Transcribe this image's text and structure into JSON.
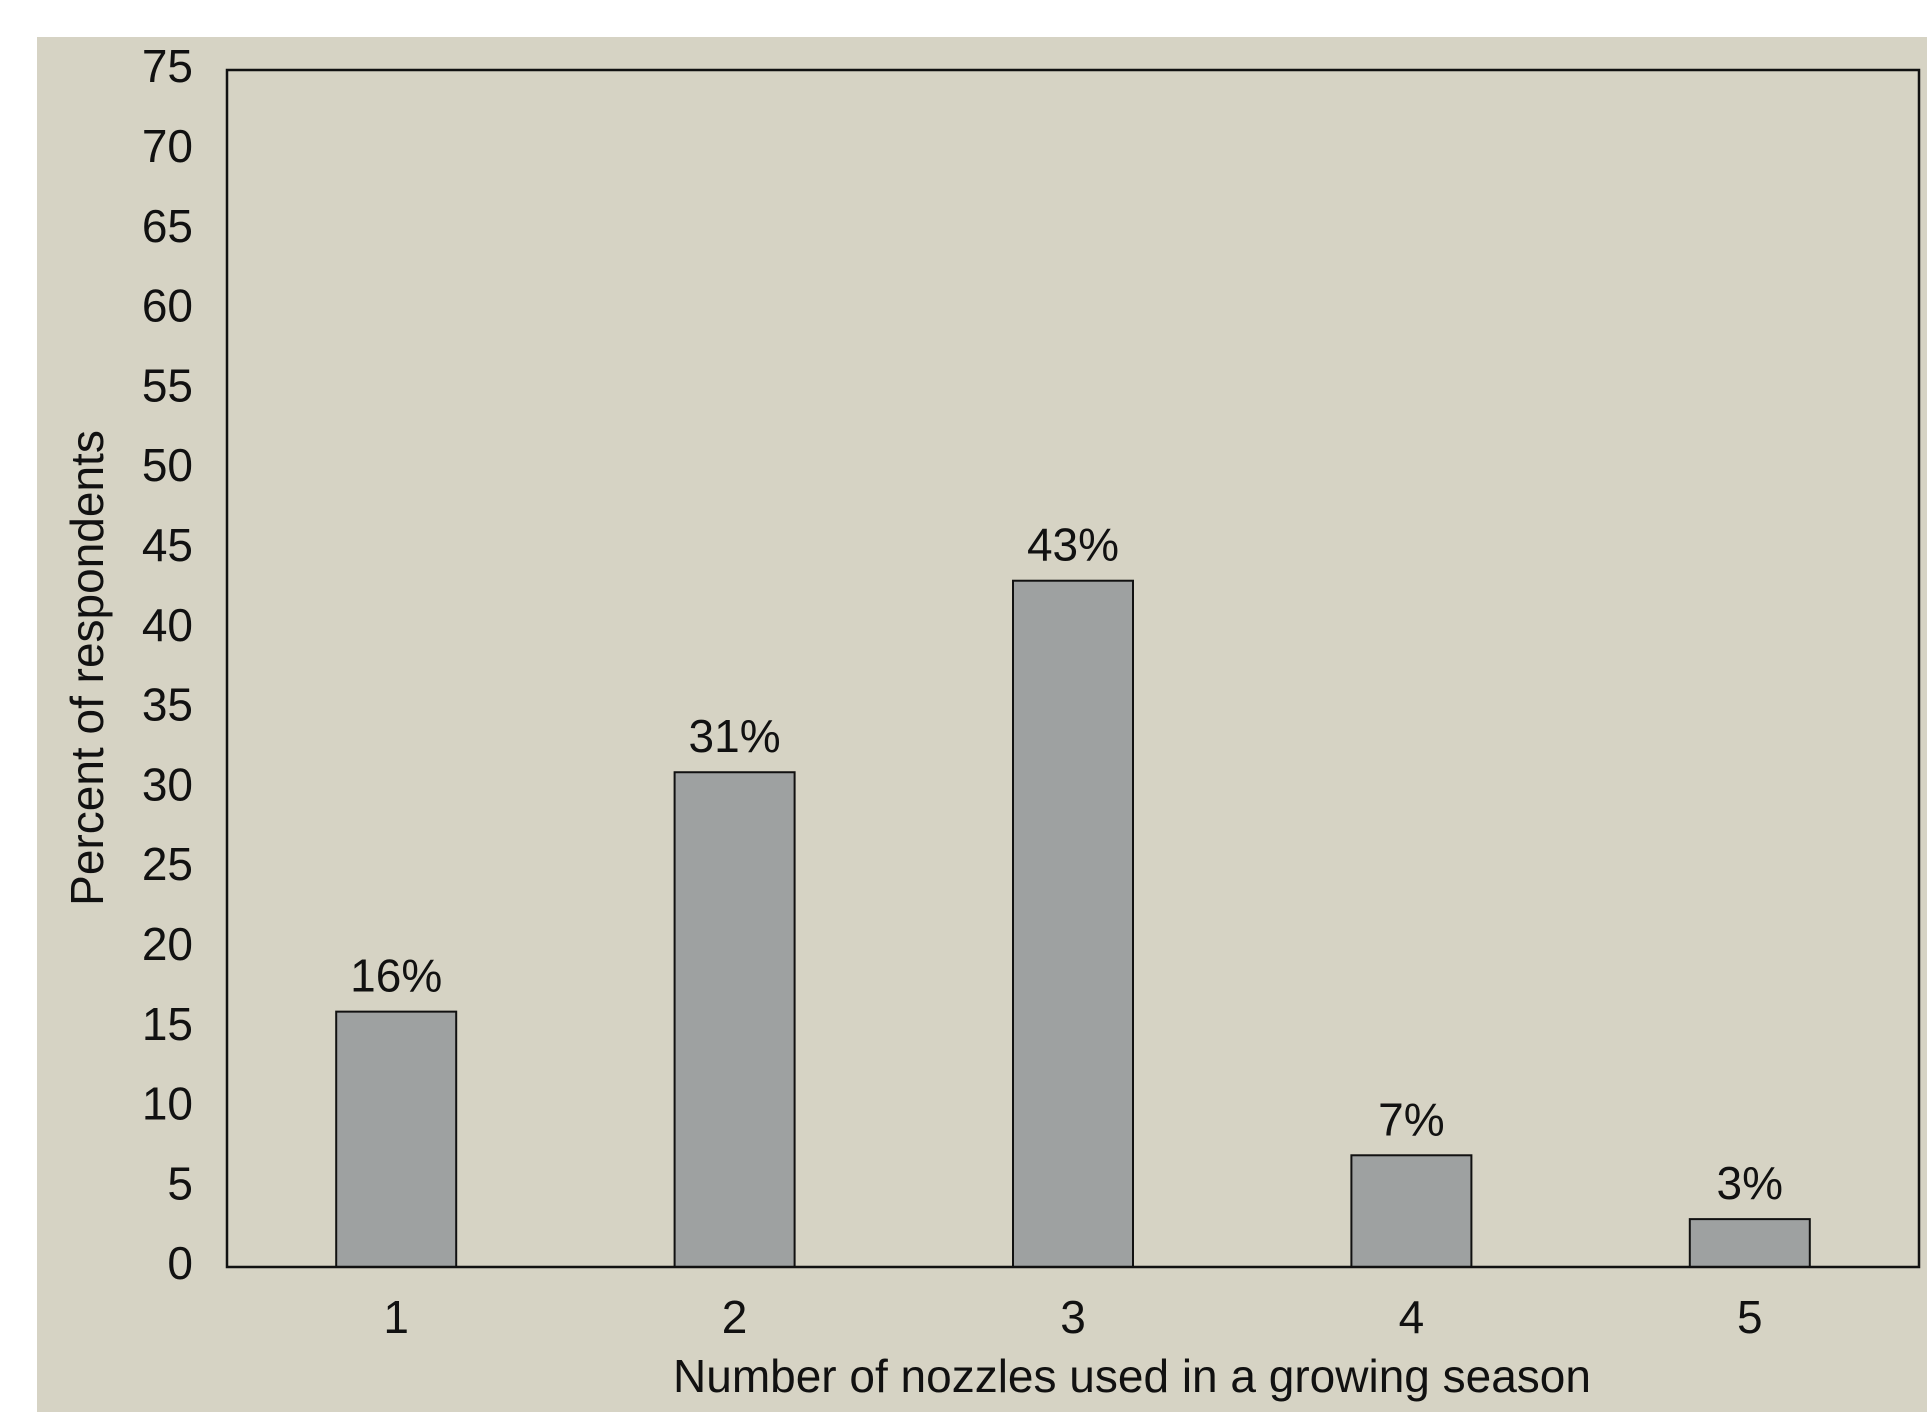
{
  "colors": {
    "background": "#d6d3c4",
    "bar_fill": "#9ea1a1",
    "bar_stroke": "#111111",
    "axis": "#111111"
  },
  "chart_data": {
    "type": "bar",
    "categories": [
      "1",
      "2",
      "3",
      "4",
      "5"
    ],
    "values": [
      16,
      31,
      43,
      7,
      3
    ],
    "data_labels": [
      "16%",
      "31%",
      "43%",
      "7%",
      "3%"
    ],
    "title": "",
    "xlabel": "Number of nozzles used in a growing season",
    "ylabel": "Percent of respondents",
    "ylim": [
      0,
      75
    ],
    "yticks": [
      0,
      5,
      10,
      15,
      20,
      25,
      30,
      35,
      40,
      45,
      50,
      55,
      60,
      65,
      70,
      75
    ],
    "grid": false,
    "legend": "none"
  }
}
